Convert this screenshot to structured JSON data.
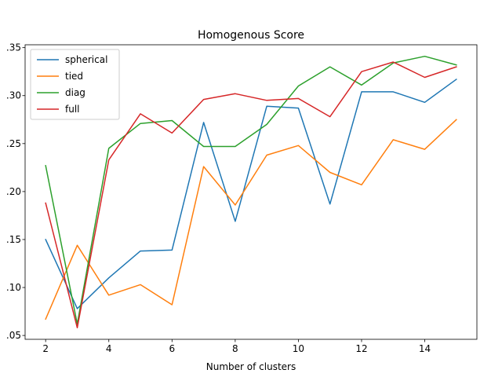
{
  "chart_data": {
    "type": "line",
    "title": "Homogenous Score",
    "xlabel": "Number of clusters",
    "ylabel": "",
    "x": [
      2,
      3,
      4,
      5,
      6,
      7,
      8,
      9,
      10,
      11,
      12,
      13,
      14,
      15
    ],
    "xlim": [
      1.35,
      15.65
    ],
    "ylim": [
      0.046,
      0.353
    ],
    "xticks": [
      2,
      4,
      6,
      8,
      10,
      12,
      14
    ],
    "yticks": [
      0.05,
      0.1,
      0.15,
      0.2,
      0.25,
      0.3,
      0.35
    ],
    "ytick_labels": [
      ".05",
      ".10",
      ".15",
      ".20",
      ".25",
      ".30",
      ".35"
    ],
    "grid": false,
    "legend": "top-left",
    "series": [
      {
        "name": "spherical",
        "color": "#1f77b4",
        "values": [
          0.15,
          0.078,
          0.11,
          0.138,
          0.139,
          0.272,
          0.169,
          0.289,
          0.287,
          0.187,
          0.304,
          0.304,
          0.293,
          0.317
        ]
      },
      {
        "name": "tied",
        "color": "#ff7f0e",
        "values": [
          0.067,
          0.144,
          0.092,
          0.103,
          0.082,
          0.226,
          0.186,
          0.238,
          0.248,
          0.22,
          0.207,
          0.254,
          0.244,
          0.275
        ]
      },
      {
        "name": "diag",
        "color": "#2ca02c",
        "values": [
          0.227,
          0.062,
          0.245,
          0.271,
          0.274,
          0.247,
          0.247,
          0.27,
          0.31,
          0.33,
          0.311,
          0.334,
          0.341,
          0.332
        ]
      },
      {
        "name": "full",
        "color": "#d62728",
        "values": [
          0.188,
          0.058,
          0.233,
          0.281,
          0.261,
          0.296,
          0.302,
          0.295,
          0.297,
          0.278,
          0.325,
          0.335,
          0.319,
          0.33
        ]
      }
    ]
  }
}
